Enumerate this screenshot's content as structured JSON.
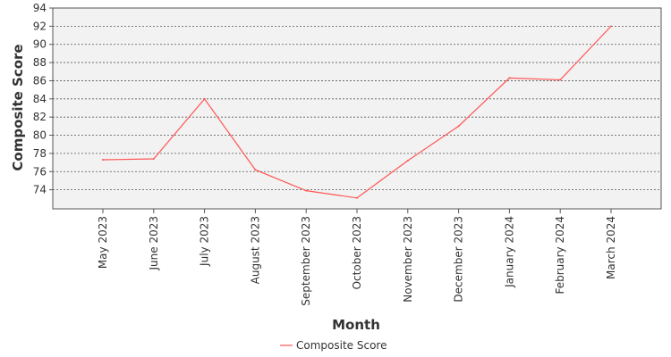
{
  "chart_data": {
    "type": "line",
    "title": "",
    "xlabel": "Month",
    "ylabel": "Composite Score",
    "categories": [
      "May 2023",
      "June 2023",
      "July 2023",
      "August 2023",
      "September 2023",
      "October 2023",
      "November 2023",
      "December 2023",
      "January 2024",
      "February 2024",
      "March 2024"
    ],
    "series": [
      {
        "name": "Composite Score",
        "color": "#ff5555",
        "values": [
          77.3,
          77.4,
          84.0,
          76.2,
          73.9,
          73.1,
          77.2,
          81.0,
          86.3,
          86.1,
          92.0
        ]
      }
    ],
    "ylim": [
      71.9,
      94
    ],
    "yticks": [
      74,
      76,
      78,
      80,
      82,
      84,
      86,
      88,
      90,
      92,
      94
    ],
    "grid": true,
    "legend_position": "bottom"
  }
}
